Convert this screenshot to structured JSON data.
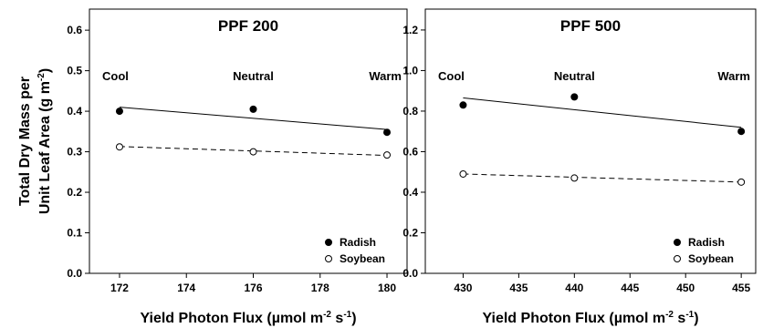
{
  "chart_data": [
    {
      "type": "scatter",
      "title": "PPF 200",
      "ylabel": [
        [
          "Total Dry Mass per"
        ],
        [
          "Unit Leaf Area (g m",
          "-2",
          ")"
        ]
      ],
      "xlabel": [
        "Yield Photon Flux (µmol m",
        "-2",
        " s",
        "-1",
        ")"
      ],
      "x": [
        172,
        176,
        180
      ],
      "condition_labels": [
        "Cool",
        "Neutral",
        "Warm"
      ],
      "series": [
        {
          "name": "Radish",
          "color": "#000000",
          "marker": "filled",
          "values": [
            0.4,
            0.405,
            0.348
          ],
          "trend": [
            0.41,
            0.355
          ],
          "trend_style": "solid"
        },
        {
          "name": "Soybean",
          "color": "#000000",
          "marker": "open",
          "values": [
            0.312,
            0.3,
            0.292
          ],
          "trend": [
            0.313,
            0.291
          ],
          "trend_style": "dashed"
        }
      ],
      "xlim": [
        171.1,
        180.6
      ],
      "xticks": [
        172,
        174,
        176,
        178,
        180
      ],
      "ylim": [
        0,
        0.652
      ],
      "yticks": [
        {
          "value": 0,
          "label": "0.0"
        },
        0.1,
        0.2,
        0.3,
        0.4,
        0.5,
        0.6
      ],
      "legend": "lower right"
    },
    {
      "type": "scatter",
      "title": "PPF 500",
      "xlabel": [
        "Yield Photon Flux (µmol m",
        "-2",
        " s",
        "-1",
        ")"
      ],
      "x": [
        430,
        440,
        455
      ],
      "condition_labels": [
        "Cool",
        "Neutral",
        "Warm"
      ],
      "series": [
        {
          "name": "Radish",
          "color": "#000000",
          "marker": "filled",
          "values": [
            0.83,
            0.87,
            0.7
          ],
          "trend": [
            0.865,
            0.72
          ],
          "trend_style": "solid"
        },
        {
          "name": "Soybean",
          "color": "#000000",
          "marker": "open",
          "values": [
            0.49,
            0.47,
            0.45
          ],
          "trend": [
            0.49,
            0.45
          ],
          "trend_style": "dashed"
        }
      ],
      "xlim": [
        426.6,
        456.3
      ],
      "xticks": [
        430,
        435,
        440,
        445,
        450,
        455
      ],
      "ylim": [
        0,
        1.303
      ],
      "yticks": [
        {
          "value": 0,
          "label": "0.0"
        },
        {
          "value": 0.2,
          "label": "0.2"
        },
        {
          "value": 0.4,
          "label": "0.4"
        },
        {
          "value": 0.6,
          "label": "0.6"
        },
        {
          "value": 0.8,
          "label": "0.8"
        },
        {
          "value": 1,
          "label": "1.0"
        },
        {
          "value": 1.2,
          "label": "1.2"
        }
      ],
      "legend": "lower right"
    }
  ]
}
